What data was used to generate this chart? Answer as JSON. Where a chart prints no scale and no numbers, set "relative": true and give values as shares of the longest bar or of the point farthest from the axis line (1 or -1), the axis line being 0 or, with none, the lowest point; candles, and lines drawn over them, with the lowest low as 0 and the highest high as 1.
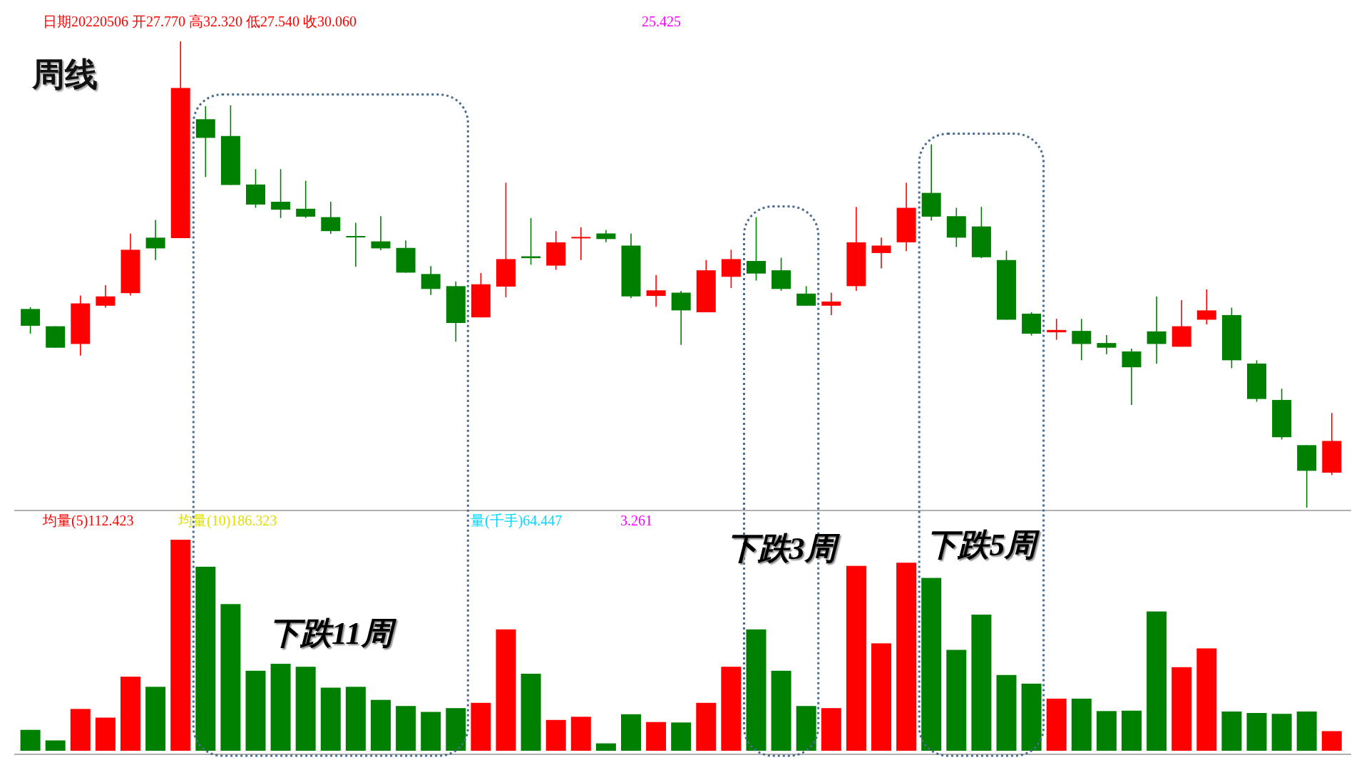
{
  "chart_data": [
    {
      "type": "candlestick",
      "title": "周线",
      "relative": true,
      "annotations": [
        "日期20220506 开27.770 高32.320 低27.540 收30.060",
        "25.425"
      ],
      "categories": [
        null,
        null,
        null,
        null,
        null,
        null,
        null,
        null,
        null,
        null,
        null,
        null,
        null,
        null,
        null,
        null,
        null,
        null,
        null,
        null,
        null,
        null,
        null,
        null,
        null,
        null,
        null,
        null,
        null,
        null,
        null,
        null,
        null,
        null,
        null,
        null,
        null,
        null,
        null,
        null,
        null,
        null,
        null,
        null,
        null,
        null,
        null,
        null,
        null,
        null,
        null,
        null,
        null
      ],
      "ohlc": [
        [
          0.426,
          0.43,
          0.373,
          0.39
        ],
        [
          0.389,
          0.389,
          0.343,
          0.343
        ],
        [
          0.351,
          0.455,
          0.326,
          0.438
        ],
        [
          0.433,
          0.477,
          0.429,
          0.453
        ],
        [
          0.46,
          0.588,
          0.455,
          0.553
        ],
        [
          0.579,
          0.617,
          0.531,
          0.556
        ],
        [
          0.578,
          1.0,
          0.578,
          0.9
        ],
        [
          0.833,
          0.861,
          0.709,
          0.793
        ],
        [
          0.797,
          0.863,
          0.692,
          0.692
        ],
        [
          0.693,
          0.726,
          0.643,
          0.65
        ],
        [
          0.656,
          0.726,
          0.621,
          0.639
        ],
        [
          0.641,
          0.701,
          0.621,
          0.624
        ],
        [
          0.623,
          0.656,
          0.587,
          0.593
        ],
        [
          0.581,
          0.611,
          0.517,
          0.581
        ],
        [
          0.571,
          0.625,
          0.552,
          0.556
        ],
        [
          0.557,
          0.573,
          0.504,
          0.504
        ],
        [
          0.501,
          0.518,
          0.456,
          0.469
        ],
        [
          0.475,
          0.485,
          0.356,
          0.396
        ],
        [
          0.408,
          0.503,
          0.408,
          0.479
        ],
        [
          0.474,
          0.697,
          0.451,
          0.533
        ],
        [
          0.539,
          0.621,
          0.521,
          0.535
        ],
        [
          0.519,
          0.593,
          0.51,
          0.569
        ],
        [
          0.576,
          0.601,
          0.531,
          0.579
        ],
        [
          0.588,
          0.595,
          0.569,
          0.576
        ],
        [
          0.562,
          0.588,
          0.449,
          0.453
        ],
        [
          0.454,
          0.499,
          0.431,
          0.466
        ],
        [
          0.461,
          0.465,
          0.349,
          0.423
        ],
        [
          0.419,
          0.531,
          0.419,
          0.509
        ],
        [
          0.495,
          0.553,
          0.471,
          0.533
        ],
        [
          0.529,
          0.623,
          0.487,
          0.502
        ],
        [
          0.509,
          0.536,
          0.465,
          0.469
        ],
        [
          0.459,
          0.475,
          0.433,
          0.433
        ],
        [
          0.433,
          0.461,
          0.413,
          0.442
        ],
        [
          0.475,
          0.645,
          0.465,
          0.569
        ],
        [
          0.546,
          0.579,
          0.513,
          0.562
        ],
        [
          0.569,
          0.697,
          0.55,
          0.643
        ],
        [
          0.675,
          0.779,
          0.616,
          0.624
        ],
        [
          0.625,
          0.643,
          0.559,
          0.579
        ],
        [
          0.603,
          0.645,
          0.535,
          0.537
        ],
        [
          0.531,
          0.551,
          0.403,
          0.403
        ],
        [
          0.416,
          0.419,
          0.369,
          0.373
        ],
        [
          0.376,
          0.405,
          0.36,
          0.381
        ],
        [
          0.379,
          0.405,
          0.316,
          0.351
        ],
        [
          0.353,
          0.37,
          0.329,
          0.343
        ],
        [
          0.335,
          0.341,
          0.22,
          0.301
        ],
        [
          0.378,
          0.453,
          0.309,
          0.351
        ],
        [
          0.345,
          0.445,
          0.345,
          0.389
        ],
        [
          0.403,
          0.468,
          0.393,
          0.423
        ],
        [
          0.413,
          0.429,
          0.299,
          0.316
        ],
        [
          0.309,
          0.316,
          0.227,
          0.233
        ],
        [
          0.231,
          0.255,
          0.146,
          0.151
        ],
        [
          0.134,
          0.134,
          0.0,
          0.079
        ],
        [
          0.075,
          0.203,
          0.07,
          0.143
        ]
      ],
      "colors": [
        "#008000",
        "#008000",
        "#ff0000",
        "#ff0000",
        "#ff0000",
        "#008000",
        "#ff0000",
        "#008000",
        "#008000",
        "#008000",
        "#008000",
        "#008000",
        "#008000",
        "#008000",
        "#008000",
        "#008000",
        "#008000",
        "#008000",
        "#ff0000",
        "#ff0000",
        "#008000",
        "#ff0000",
        "#ff0000",
        "#008000",
        "#008000",
        "#ff0000",
        "#008000",
        "#ff0000",
        "#ff0000",
        "#008000",
        "#008000",
        "#008000",
        "#ff0000",
        "#ff0000",
        "#ff0000",
        "#ff0000",
        "#008000",
        "#008000",
        "#008000",
        "#008000",
        "#008000",
        "#ff0000",
        "#008000",
        "#008000",
        "#008000",
        "#008000",
        "#ff0000",
        "#ff0000",
        "#008000",
        "#008000",
        "#008000",
        "#008000",
        "#ff0000"
      ]
    },
    {
      "type": "bar",
      "relative": true,
      "annotations": [
        "均量(5)112.423",
        "均量(10)186.323",
        "量(千手)64.447",
        "3.261",
        "下跌11周",
        "下跌3周",
        "下跌5周"
      ],
      "categories": [
        null,
        null,
        null,
        null,
        null,
        null,
        null,
        null,
        null,
        null,
        null,
        null,
        null,
        null,
        null,
        null,
        null,
        null,
        null,
        null,
        null,
        null,
        null,
        null,
        null,
        null,
        null,
        null,
        null,
        null,
        null,
        null,
        null,
        null,
        null,
        null,
        null,
        null,
        null,
        null,
        null,
        null,
        null,
        null,
        null,
        null,
        null,
        null,
        null,
        null,
        null,
        null,
        null
      ],
      "values": [
        0.099,
        0.049,
        0.198,
        0.157,
        0.351,
        0.303,
        1.0,
        0.872,
        0.695,
        0.379,
        0.412,
        0.398,
        0.299,
        0.303,
        0.241,
        0.212,
        0.184,
        0.202,
        0.227,
        0.575,
        0.365,
        0.146,
        0.161,
        0.035,
        0.173,
        0.136,
        0.134,
        0.227,
        0.398,
        0.575,
        0.379,
        0.212,
        0.202,
        0.876,
        0.509,
        0.891,
        0.819,
        0.478,
        0.645,
        0.359,
        0.318,
        0.247,
        0.247,
        0.188,
        0.19,
        0.66,
        0.396,
        0.485,
        0.186,
        0.179,
        0.175,
        0.186,
        0.093
      ],
      "colors": [
        "#008000",
        "#008000",
        "#ff0000",
        "#ff0000",
        "#ff0000",
        "#008000",
        "#ff0000",
        "#008000",
        "#008000",
        "#008000",
        "#008000",
        "#008000",
        "#008000",
        "#008000",
        "#008000",
        "#008000",
        "#008000",
        "#008000",
        "#ff0000",
        "#ff0000",
        "#008000",
        "#ff0000",
        "#ff0000",
        "#008000",
        "#008000",
        "#ff0000",
        "#008000",
        "#ff0000",
        "#ff0000",
        "#008000",
        "#008000",
        "#008000",
        "#ff0000",
        "#ff0000",
        "#ff0000",
        "#ff0000",
        "#008000",
        "#008000",
        "#008000",
        "#008000",
        "#008000",
        "#ff0000",
        "#008000",
        "#008000",
        "#008000",
        "#008000",
        "#ff0000",
        "#ff0000",
        "#008000",
        "#008000",
        "#008000",
        "#008000",
        "#ff0000"
      ]
    }
  ]
}
